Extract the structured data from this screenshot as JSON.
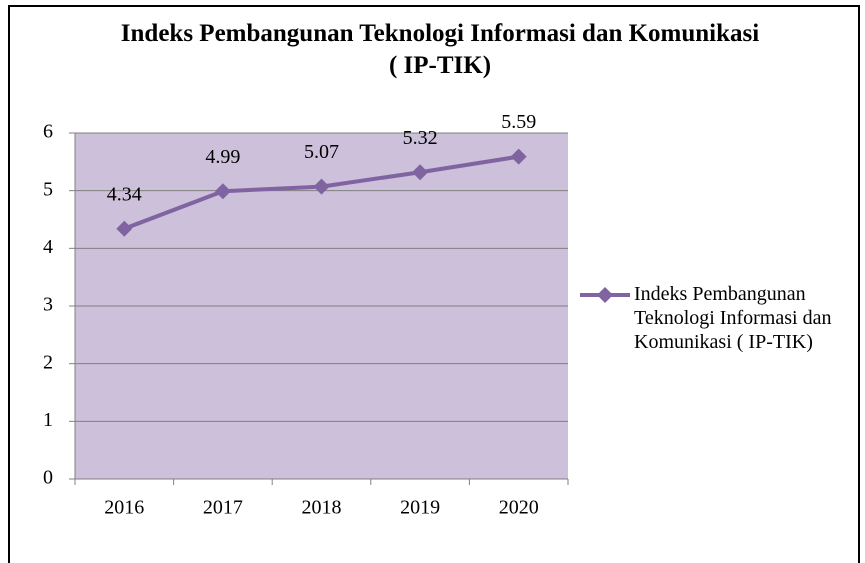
{
  "chart_data": {
    "type": "line",
    "title": "Indeks Pembangunan Teknologi Informasi dan Komunikasi ( IP-TIK)",
    "categories": [
      "2016",
      "2017",
      "2018",
      "2019",
      "2020"
    ],
    "series": [
      {
        "name": "Indeks Pembangunan Teknologi Informasi dan Komunikasi ( IP-TIK)",
        "color": "#8064a2",
        "values": [
          4.34,
          4.99,
          5.07,
          5.32,
          5.59
        ]
      }
    ],
    "ylim": [
      0,
      6
    ],
    "yticks": [
      0,
      1,
      2,
      3,
      4,
      5,
      6
    ],
    "grid": true,
    "legend": "right"
  }
}
